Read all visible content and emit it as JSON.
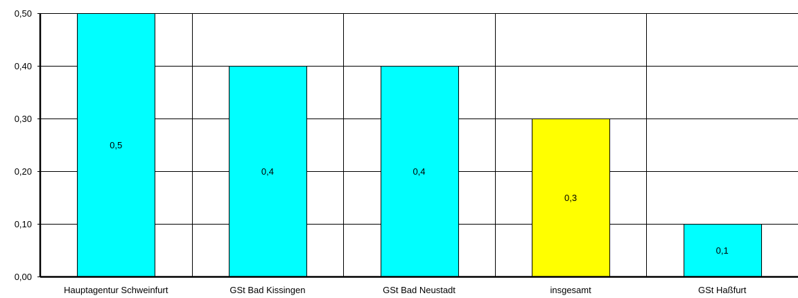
{
  "chart_data": {
    "type": "bar",
    "categories": [
      "Hauptagentur Schweinfurt",
      "GSt Bad Kissingen",
      "GSt Bad Neustadt",
      "insgesamt",
      "GSt Haßfurt"
    ],
    "values": [
      0.5,
      0.4,
      0.4,
      0.3,
      0.1
    ],
    "data_labels": [
      "0,5",
      "0,4",
      "0,4",
      "0,3",
      "0,1"
    ],
    "bar_colors": [
      "#00ffff",
      "#00ffff",
      "#00ffff",
      "#ffff00",
      "#00ffff"
    ],
    "ylim": [
      0,
      0.5
    ],
    "yticks": [
      0,
      0.1,
      0.2,
      0.3,
      0.4,
      0.5
    ],
    "ytick_labels": [
      "0,00",
      "0,10",
      "0,20",
      "0,30",
      "0,40",
      "0,50"
    ],
    "grid": true,
    "legend": "none",
    "title": "",
    "xlabel": "",
    "ylabel": ""
  }
}
